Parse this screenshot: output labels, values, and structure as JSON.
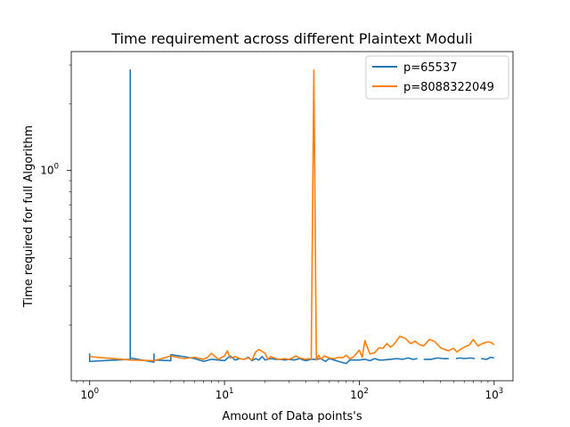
{
  "chart_data": {
    "type": "line",
    "title": "Time requirement across different Plaintext Moduli",
    "xlabel": "Amount of Data points's",
    "ylabel": "Time required for full Algorithm",
    "xscale": "log",
    "yscale": "log",
    "xlim": [
      0.73,
      1380
    ],
    "ylim": [
      0.112,
      3.45
    ],
    "x_ticks": [
      {
        "value": 1,
        "base": "10",
        "exp": "0"
      },
      {
        "value": 10,
        "base": "10",
        "exp": "1"
      },
      {
        "value": 100,
        "base": "10",
        "exp": "2"
      },
      {
        "value": 1000,
        "base": "10",
        "exp": "3"
      }
    ],
    "y_ticks": [
      {
        "value": 1,
        "base": "10",
        "exp": "0"
      }
    ],
    "legend_position": "top-right",
    "series": [
      {
        "name": "p=65537",
        "color": "#1f77b4",
        "points": [
          [
            1,
            0.149
          ],
          [
            1,
            0.137
          ],
          [
            2,
            0.14
          ],
          [
            2,
            2.85
          ],
          [
            2,
            0.142
          ],
          [
            3,
            0.136
          ],
          [
            3,
            0.148
          ],
          [
            3,
            0.139
          ],
          [
            4,
            0.138
          ],
          [
            4,
            0.147
          ],
          [
            5,
            0.144
          ],
          [
            6,
            0.141
          ],
          [
            7,
            0.137
          ],
          [
            8,
            0.14
          ],
          [
            9,
            0.139
          ],
          [
            10,
            0.138
          ],
          [
            11,
            0.145
          ],
          [
            12,
            0.139
          ],
          [
            13,
            0.141
          ],
          [
            14,
            0.14
          ],
          [
            15,
            0.143
          ],
          [
            16,
            0.138
          ],
          [
            17,
            0.141
          ],
          [
            18,
            0.139
          ],
          [
            19,
            0.144
          ],
          [
            20,
            0.139
          ],
          [
            22,
            0.141
          ],
          [
            24,
            0.14
          ],
          [
            26,
            0.14
          ],
          [
            28,
            0.139
          ],
          [
            30,
            0.14
          ],
          [
            33,
            0.139
          ],
          [
            36,
            0.141
          ],
          [
            40,
            0.138
          ],
          [
            44,
            0.14
          ],
          [
            48,
            0.14
          ],
          [
            52,
            0.141
          ],
          [
            56,
            0.137
          ],
          [
            60,
            0.141
          ],
          [
            65,
            0.139
          ],
          [
            70,
            0.137
          ],
          [
            80,
            0.134
          ],
          [
            85,
            0.139
          ],
          [
            90,
            0.139
          ],
          [
            100,
            0.139
          ],
          [
            110,
            0.14
          ],
          [
            120,
            0.138
          ],
          [
            130,
            0.141
          ],
          [
            140,
            0.139
          ],
          [
            150,
            0.139
          ],
          [
            170,
            0.14
          ],
          [
            190,
            0.141
          ],
          [
            210,
            0.14
          ],
          [
            230,
            0.142
          ],
          [
            250,
            0.14
          ],
          [
            270,
            0.141
          ],
          null,
          [
            300,
            0.14
          ],
          [
            340,
            0.14
          ],
          [
            380,
            0.142
          ],
          [
            420,
            0.141
          ],
          [
            460,
            0.141
          ],
          null,
          [
            520,
            0.141
          ],
          [
            560,
            0.142
          ],
          [
            600,
            0.141
          ],
          [
            660,
            0.142
          ],
          [
            720,
            0.141
          ],
          null,
          [
            800,
            0.141
          ],
          [
            880,
            0.14
          ],
          [
            940,
            0.143
          ],
          [
            1000,
            0.142
          ]
        ]
      },
      {
        "name": "p=8088322049",
        "color": "#ff7f0e",
        "points": [
          [
            1,
            0.144
          ],
          [
            2,
            0.139
          ],
          [
            3,
            0.138
          ],
          [
            4,
            0.145
          ],
          [
            5,
            0.141
          ],
          [
            6,
            0.143
          ],
          [
            7,
            0.14
          ],
          [
            7.5,
            0.143
          ],
          [
            8,
            0.149
          ],
          [
            9,
            0.14
          ],
          [
            10,
            0.145
          ],
          [
            10.5,
            0.153
          ],
          [
            11,
            0.142
          ],
          [
            12,
            0.144
          ],
          [
            13,
            0.141
          ],
          [
            14,
            0.14
          ],
          [
            15,
            0.142
          ],
          [
            16,
            0.139
          ],
          [
            17,
            0.151
          ],
          [
            18,
            0.155
          ],
          [
            19,
            0.152
          ],
          [
            20,
            0.149
          ],
          [
            21,
            0.14
          ],
          [
            22,
            0.144
          ],
          [
            24,
            0.141
          ],
          [
            26,
            0.14
          ],
          [
            28,
            0.141
          ],
          [
            30,
            0.14
          ],
          [
            32,
            0.142
          ],
          [
            34,
            0.145
          ],
          [
            36,
            0.142
          ],
          [
            38,
            0.141
          ],
          [
            40,
            0.14
          ],
          [
            42,
            0.141
          ],
          [
            44,
            0.14
          ],
          [
            46,
            2.85
          ],
          [
            48,
            0.139
          ],
          [
            50,
            0.146
          ],
          [
            52,
            0.14
          ],
          [
            55,
            0.145
          ],
          [
            60,
            0.142
          ],
          [
            65,
            0.141
          ],
          [
            70,
            0.143
          ],
          [
            75,
            0.142
          ],
          [
            80,
            0.146
          ],
          [
            85,
            0.141
          ],
          [
            90,
            0.143
          ],
          [
            100,
            0.154
          ],
          [
            105,
            0.143
          ],
          [
            110,
            0.17
          ],
          [
            120,
            0.148
          ],
          [
            130,
            0.15
          ],
          [
            140,
            0.158
          ],
          [
            150,
            0.157
          ],
          [
            160,
            0.165
          ],
          [
            170,
            0.159
          ],
          [
            180,
            0.163
          ],
          [
            200,
            0.178
          ],
          [
            220,
            0.174
          ],
          [
            240,
            0.165
          ],
          [
            260,
            0.169
          ],
          [
            280,
            0.163
          ],
          [
            300,
            0.161
          ],
          [
            330,
            0.172
          ],
          [
            360,
            0.169
          ],
          [
            400,
            0.158
          ],
          [
            430,
            0.155
          ],
          [
            460,
            0.153
          ],
          [
            500,
            0.157
          ],
          [
            530,
            0.151
          ],
          [
            560,
            0.155
          ],
          [
            600,
            0.159
          ],
          [
            650,
            0.162
          ],
          [
            700,
            0.172
          ],
          [
            760,
            0.161
          ],
          [
            820,
            0.165
          ],
          [
            900,
            0.168
          ],
          [
            950,
            0.167
          ],
          [
            1000,
            0.163
          ]
        ]
      }
    ]
  }
}
